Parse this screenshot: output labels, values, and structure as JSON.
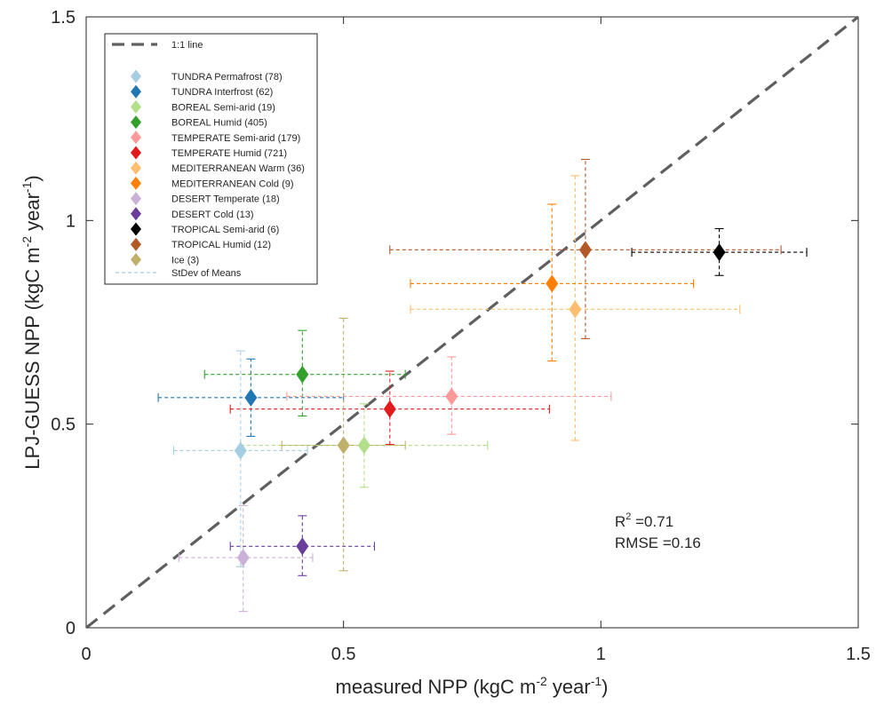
{
  "chart_data": {
    "type": "scatter",
    "xlabel_main": "measured NPP (kgC m",
    "xlabel_exp": "-2",
    "xlabel_tail": " year",
    "xlabel_exp2": "-1",
    "xlabel_close": ")",
    "ylabel_main": "LPJ-GUESS NPP (kgC m",
    "ylabel_exp": "-2",
    "ylabel_tail": " year",
    "ylabel_exp2": "-1",
    "ylabel_close": ")",
    "xlim": [
      0,
      1.5
    ],
    "ylim": [
      0,
      1.5
    ],
    "xticks": [
      0,
      0.5,
      1,
      1.5
    ],
    "yticks": [
      0,
      0.5,
      1,
      1.5
    ],
    "xtick_labels": [
      "0",
      "0.5",
      "1",
      "1.5"
    ],
    "ytick_labels": [
      "0",
      "0.5",
      "1",
      "1.5"
    ],
    "grid": false,
    "legend_position": "top-left",
    "reference_line": {
      "label": "1:1 line",
      "color": "#5f5f5f"
    },
    "stdev_label": "StDev of Means",
    "stats": {
      "r2_prefix": "R",
      "r2_exp": "2",
      "r2_text": " =0.71",
      "rmse_text": "RMSE =0.16"
    },
    "series": [
      {
        "name": "TUNDRA Permafrost (78)",
        "color": "#a6cee3",
        "x": 0.3,
        "y": 0.435,
        "xerr": [
          0.17,
          0.43
        ],
        "yerr": [
          0.15,
          0.68
        ]
      },
      {
        "name": "TUNDRA Interfrost (62)",
        "color": "#1f78b4",
        "x": 0.32,
        "y": 0.565,
        "xerr": [
          0.14,
          0.5
        ],
        "yerr": [
          0.47,
          0.66
        ]
      },
      {
        "name": "BOREAL Semi-arid (19)",
        "color": "#b2df8a",
        "x": 0.54,
        "y": 0.448,
        "xerr": [
          0.3,
          0.78
        ],
        "yerr": [
          0.345,
          0.55
        ]
      },
      {
        "name": "BOREAL Humid (405)",
        "color": "#33a02c",
        "x": 0.42,
        "y": 0.622,
        "xerr": [
          0.23,
          0.62
        ],
        "yerr": [
          0.52,
          0.73
        ]
      },
      {
        "name": "TEMPERATE Semi-arid (179)",
        "color": "#fb9a99",
        "x": 0.71,
        "y": 0.568,
        "xerr": [
          0.39,
          1.02
        ],
        "yerr": [
          0.475,
          0.665
        ]
      },
      {
        "name": "TEMPERATE Humid (721)",
        "color": "#e31a1c",
        "x": 0.59,
        "y": 0.537,
        "xerr": [
          0.28,
          0.9
        ],
        "yerr": [
          0.45,
          0.63
        ]
      },
      {
        "name": "MEDITERRANEAN Warm (36)",
        "color": "#fdbf6f",
        "x": 0.95,
        "y": 0.782,
        "xerr": [
          0.63,
          1.27
        ],
        "yerr": [
          0.46,
          1.11
        ]
      },
      {
        "name": "MEDITERRANEAN Cold (9)",
        "color": "#ff7f00",
        "x": 0.905,
        "y": 0.845,
        "xerr": [
          0.63,
          1.18
        ],
        "yerr": [
          0.655,
          1.04
        ]
      },
      {
        "name": "DESERT Temperate (18)",
        "color": "#cab2d6",
        "x": 0.305,
        "y": 0.172,
        "xerr": [
          0.18,
          0.44
        ],
        "yerr": [
          0.04,
          0.3
        ]
      },
      {
        "name": "DESERT Cold (13)",
        "color": "#6a3d9a",
        "x": 0.42,
        "y": 0.2,
        "xerr": [
          0.28,
          0.56
        ],
        "yerr": [
          0.128,
          0.275
        ]
      },
      {
        "name": "TROPICAL Semi-arid (6)",
        "color": "#000000",
        "x": 1.23,
        "y": 0.922,
        "xerr": [
          1.06,
          1.4
        ],
        "yerr": [
          0.865,
          0.98
        ]
      },
      {
        "name": "TROPICAL Humid (12)",
        "color": "#b15928",
        "x": 0.97,
        "y": 0.928,
        "xerr": [
          0.59,
          1.35
        ],
        "yerr": [
          0.71,
          1.15
        ]
      },
      {
        "name": "Ice (3)",
        "color": "#bfb06a",
        "x": 0.5,
        "y": 0.448,
        "xerr": [
          0.38,
          0.62
        ],
        "yerr": [
          0.14,
          0.76
        ]
      }
    ]
  }
}
